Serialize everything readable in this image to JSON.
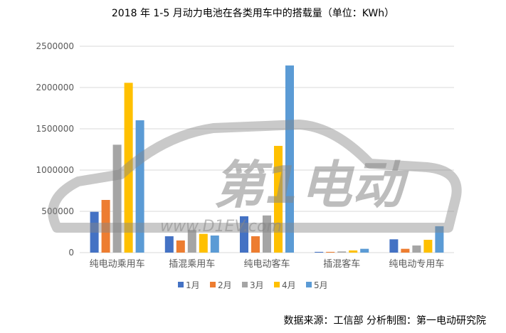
{
  "title": "2018 年 1-5 月动力电池在各类用车中的搭载量（单位：KWh）",
  "source": "数据来源：工信部  分析制图：第一电动研究院",
  "watermark": {
    "text": "第1电动",
    "url": "www.D1EV.com"
  },
  "chart_data": {
    "type": "bar",
    "title": "2018 年 1-5 月动力电池在各类用车中的搭载量（单位：KWh）",
    "categories": [
      "纯电动乘用车",
      "插混乘用车",
      "纯电动客车",
      "插混客车",
      "纯电动专用车"
    ],
    "series": [
      {
        "name": "1月",
        "color": "#4472C4",
        "values": [
          494000,
          198000,
          440000,
          9000,
          161000
        ]
      },
      {
        "name": "2月",
        "color": "#ED7D31",
        "values": [
          638000,
          147000,
          198000,
          9000,
          46000
        ]
      },
      {
        "name": "3月",
        "color": "#A5A5A5",
        "values": [
          1307000,
          273000,
          450000,
          14000,
          86000
        ]
      },
      {
        "name": "4月",
        "color": "#FFC000",
        "values": [
          2057000,
          227000,
          1293000,
          26000,
          155000
        ]
      },
      {
        "name": "5月",
        "color": "#5B9BD5",
        "values": [
          1603000,
          207000,
          2267000,
          46000,
          319000
        ]
      }
    ],
    "ylim": [
      0,
      2500000
    ],
    "yticks": [
      "0",
      "500000",
      "1000000",
      "1500000",
      "2000000",
      "2500000"
    ],
    "grid": true,
    "legend": "bottom"
  }
}
